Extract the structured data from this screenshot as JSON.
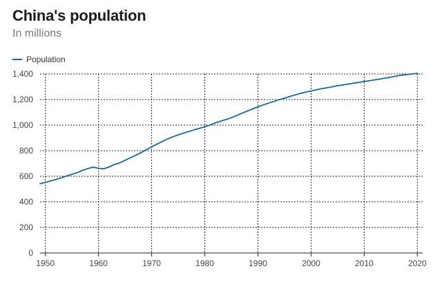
{
  "chart_data": {
    "type": "line",
    "title": "China's population",
    "subtitle": "In millions",
    "legend": {
      "position": "top-left",
      "entries": [
        "Population"
      ]
    },
    "grid": true,
    "xlim": [
      1949,
      2021
    ],
    "ylim": [
      0,
      1400
    ],
    "xticks": [
      1950,
      1960,
      1970,
      1980,
      1990,
      2000,
      2010,
      2020
    ],
    "yticks": [
      0,
      200,
      400,
      600,
      800,
      1000,
      1200,
      1400
    ],
    "ytick_labels": [
      "0",
      "200",
      "400",
      "600",
      "800",
      "1,000",
      "1,200",
      "1,400"
    ],
    "series": [
      {
        "name": "Population",
        "color": "#1f6694",
        "x": [
          1949,
          1950,
          1951,
          1952,
          1953,
          1954,
          1955,
          1956,
          1957,
          1958,
          1959,
          1960,
          1961,
          1962,
          1963,
          1964,
          1965,
          1966,
          1967,
          1968,
          1969,
          1970,
          1971,
          1972,
          1973,
          1974,
          1975,
          1976,
          1977,
          1978,
          1979,
          1980,
          1981,
          1982,
          1983,
          1984,
          1985,
          1986,
          1987,
          1988,
          1989,
          1990,
          1991,
          1992,
          1993,
          1994,
          1995,
          1996,
          1997,
          1998,
          1999,
          2000,
          2001,
          2002,
          2003,
          2004,
          2005,
          2006,
          2007,
          2008,
          2009,
          2010,
          2011,
          2012,
          2013,
          2014,
          2015,
          2016,
          2017,
          2018,
          2019,
          2020
        ],
        "values": [
          542,
          552,
          563,
          575,
          588,
          602,
          615,
          628,
          647,
          660,
          672,
          662,
          659,
          673,
          692,
          705,
          725,
          745,
          764,
          785,
          807,
          830,
          852,
          872,
          892,
          909,
          924,
          937,
          950,
          963,
          975,
          987,
          1001,
          1017,
          1030,
          1044,
          1058,
          1075,
          1093,
          1110,
          1127,
          1143,
          1158,
          1172,
          1185,
          1199,
          1211,
          1224,
          1236,
          1248,
          1258,
          1267,
          1276,
          1285,
          1292,
          1300,
          1308,
          1314,
          1321,
          1328,
          1334,
          1341,
          1347,
          1354,
          1361,
          1368,
          1375,
          1383,
          1390,
          1395,
          1400,
          1405
        ]
      }
    ]
  }
}
